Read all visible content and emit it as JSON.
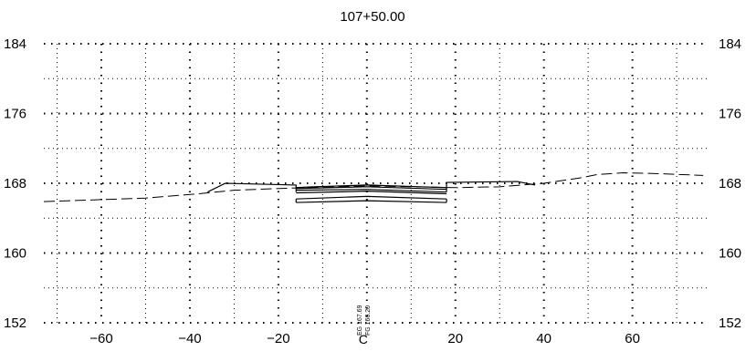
{
  "station_label": "107+50.00",
  "centerline_mark": "C",
  "annotations": {
    "existing_ground": "EG 167.69",
    "finished_grade": "FG 166.20"
  },
  "axes": {
    "x_ticks": [
      -60,
      -40,
      -20,
      20,
      40,
      60
    ],
    "x_tick_labels": [
      "−60",
      "−40",
      "−20",
      "20",
      "40",
      "60"
    ],
    "x_range": [
      -73,
      77
    ],
    "y_ticks": [
      152,
      160,
      168,
      176,
      184
    ],
    "y_range": [
      152,
      184
    ],
    "x_grid_minor": [
      -70,
      -50,
      -30,
      -10,
      10,
      30,
      50,
      70
    ],
    "y_grid_minor": [
      156,
      164,
      172,
      180
    ],
    "grid": "dotted"
  },
  "profiles": {
    "existing_ground": {
      "style": "dashed",
      "points": [
        [
          -73,
          165.9
        ],
        [
          -50,
          166.3
        ],
        [
          -38,
          166.8
        ],
        [
          -30,
          167.2
        ],
        [
          -20,
          167.4
        ],
        [
          -10,
          167.55
        ],
        [
          0,
          167.7
        ],
        [
          10,
          167.6
        ],
        [
          20,
          167.5
        ],
        [
          30,
          167.6
        ],
        [
          40,
          168.0
        ],
        [
          48,
          168.6
        ],
        [
          52,
          169.0
        ],
        [
          58,
          169.2
        ],
        [
          66,
          169.1
        ],
        [
          76,
          168.9
        ]
      ]
    },
    "finished_grade": {
      "style": "solid",
      "segments": [
        [
          [
            -36,
            167
          ],
          [
            -32,
            168
          ],
          [
            -16,
            167.8
          ],
          [
            -16,
            167
          ]
        ],
        [
          [
            -16,
            167.5
          ],
          [
            -12,
            167.6
          ],
          [
            0,
            167.8
          ],
          [
            12,
            167.6
          ],
          [
            18,
            167.5
          ]
        ],
        [
          [
            -16,
            167.4
          ],
          [
            0,
            167.6
          ],
          [
            18,
            167.3
          ]
        ],
        [
          [
            -16,
            167.2
          ],
          [
            0,
            167.3
          ],
          [
            18,
            167.0
          ]
        ],
        [
          [
            -16,
            166.9
          ],
          [
            0,
            167.1
          ],
          [
            18,
            166.8
          ]
        ],
        [
          [
            -16,
            166.2
          ],
          [
            0,
            166.5
          ],
          [
            18,
            166.2
          ]
        ],
        [
          [
            -16,
            165.8
          ],
          [
            0,
            166.0
          ],
          [
            18,
            165.8
          ]
        ],
        [
          [
            -16,
            166.2
          ],
          [
            -16,
            165.8
          ]
        ],
        [
          [
            18,
            166.2
          ],
          [
            18,
            165.8
          ]
        ],
        [
          [
            18,
            167
          ],
          [
            18,
            168.1
          ],
          [
            34,
            168.2
          ],
          [
            38,
            167.8
          ]
        ]
      ]
    }
  }
}
